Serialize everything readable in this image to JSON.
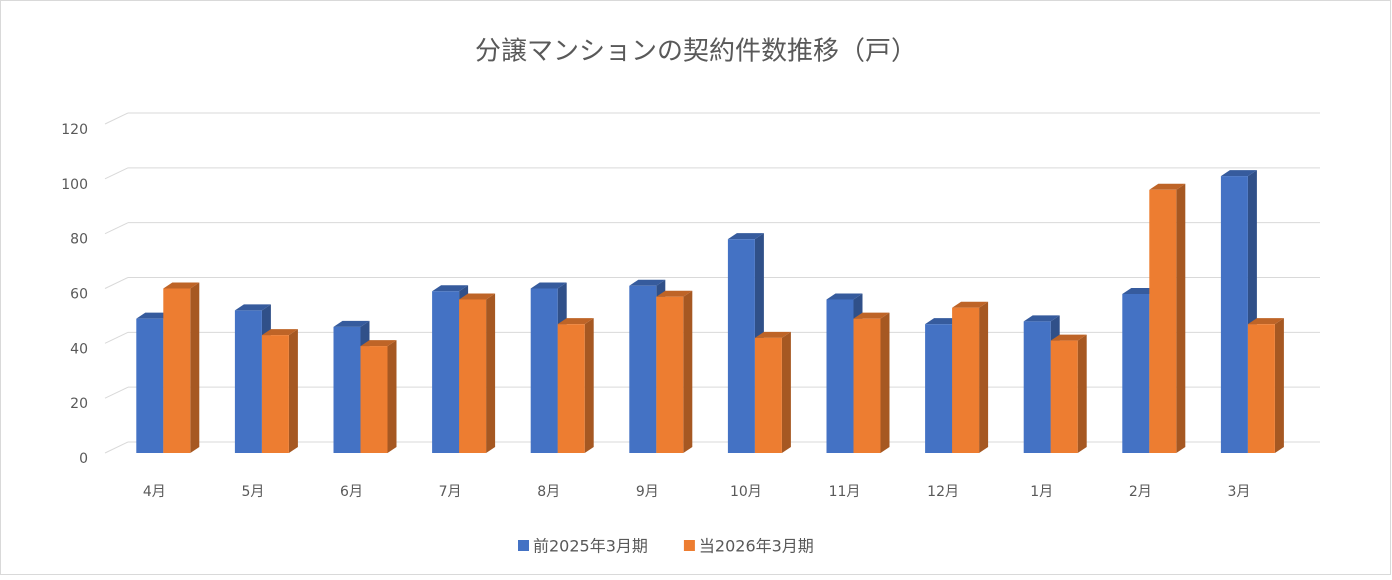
{
  "chart_data": {
    "type": "bar",
    "title": "分譲マンションの契約件数推移（戸）",
    "categories": [
      "4月",
      "5月",
      "6月",
      "7月",
      "8月",
      "9月",
      "10月",
      "11月",
      "12月",
      "1月",
      "2月",
      "3月"
    ],
    "series": [
      {
        "name": "前2025年3月期",
        "color": "#4472c4",
        "values": [
          49,
          52,
          46,
          59,
          60,
          61,
          78,
          56,
          47,
          48,
          58,
          101
        ]
      },
      {
        "name": "当2026年3月期",
        "color": "#ed7d31",
        "values": [
          60,
          43,
          39,
          56,
          47,
          57,
          42,
          49,
          53,
          41,
          96,
          47
        ]
      }
    ],
    "ylim": [
      0,
      120
    ],
    "yticks": [
      0,
      20,
      40,
      60,
      80,
      100,
      120
    ],
    "grid": true,
    "legend": "bottom"
  }
}
